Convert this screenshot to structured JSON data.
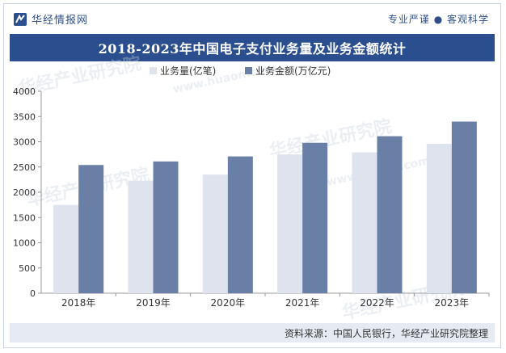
{
  "header": {
    "logo_text": "华经情报网",
    "slogan": "专业严谨 ● 客观科学"
  },
  "watermark": {
    "text": "华经产业研究院",
    "url": "www.huaon.com"
  },
  "footer": {
    "source": "资料来源：中国人民银行，华经产业研究院整理"
  },
  "colors": {
    "title_bg": "#2b4f8e",
    "series_1": "#dfe3ee",
    "series_2": "#6a7fa6",
    "footer_bg": "#e6ebf3"
  },
  "chart_data": {
    "type": "bar",
    "title": "2018-2023年中国电子支付业务量及业务金额统计",
    "categories": [
      "2018年",
      "2019年",
      "2020年",
      "2021年",
      "2022年",
      "2023年"
    ],
    "series": [
      {
        "name": "业务量(亿笔)",
        "values": [
          1750,
          2230,
          2350,
          2750,
          2790,
          2960
        ]
      },
      {
        "name": "业务金额(万亿元)",
        "values": [
          2540,
          2610,
          2710,
          2980,
          3110,
          3400
        ]
      }
    ],
    "yticks": [
      "0",
      "500",
      "1000",
      "1500",
      "2000",
      "2500",
      "3000",
      "3500",
      "4000"
    ],
    "ylim": [
      0,
      4000
    ],
    "xlabel": "",
    "ylabel": "",
    "legend_position": "top",
    "grid": false
  }
}
